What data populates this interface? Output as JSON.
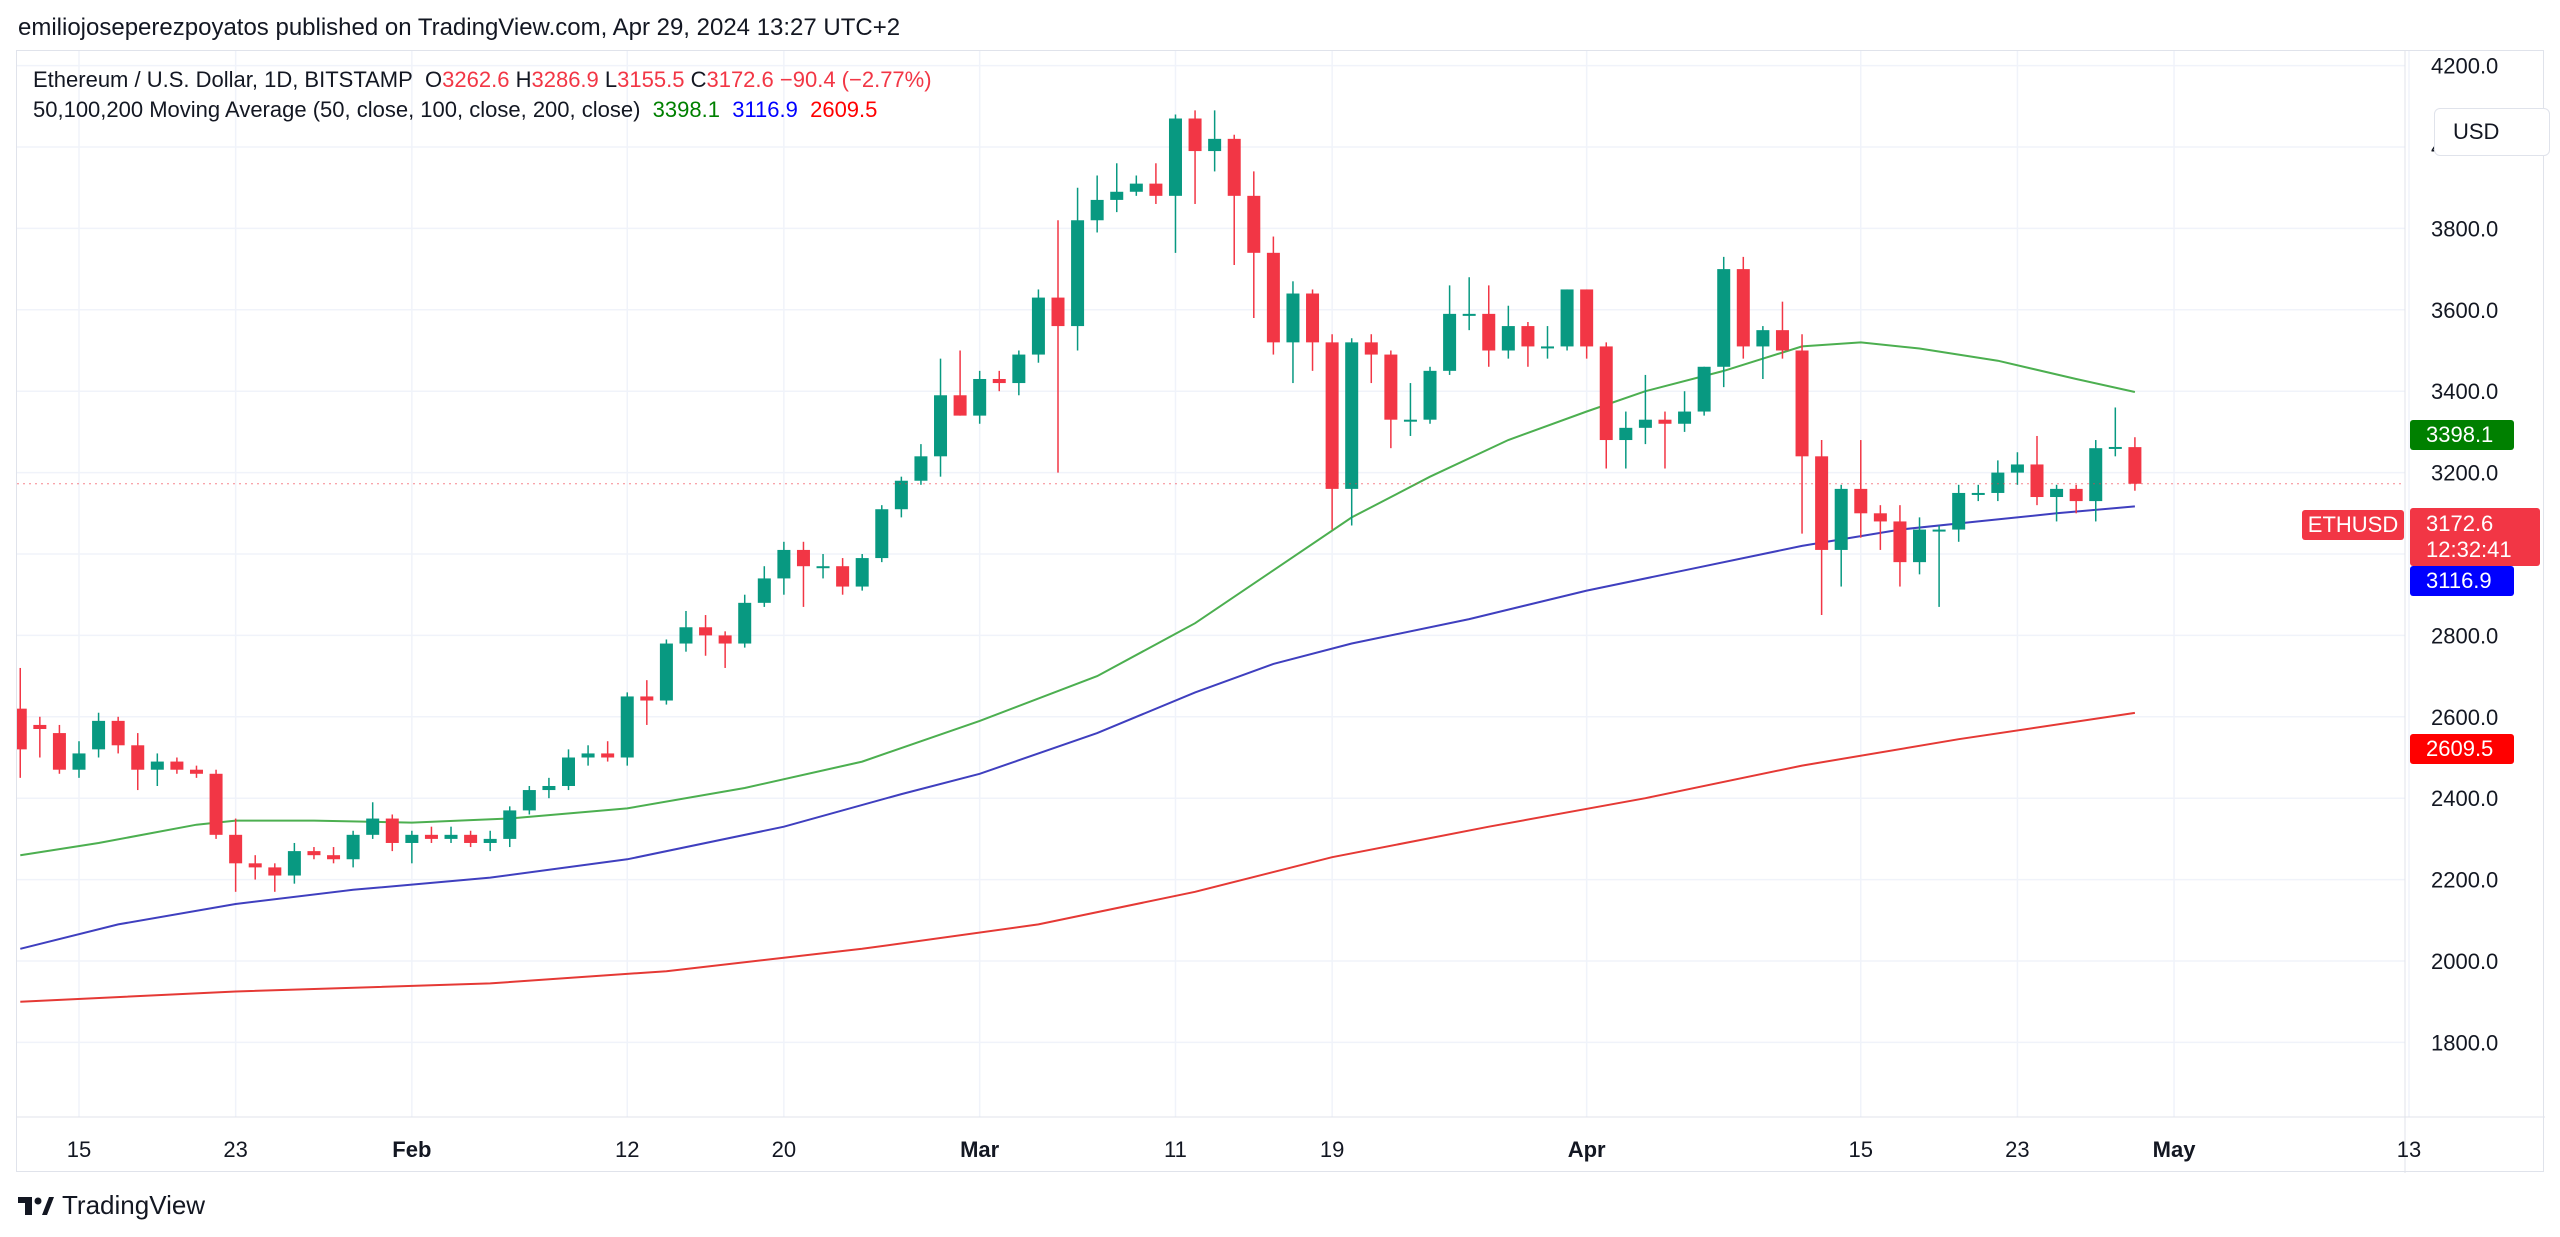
{
  "publisher": "emiliojoseperezpoyatos published on TradingView.com, Apr 29, 2024 13:27 UTC+2",
  "legend": {
    "symbol": "Ethereum / U.S. Dollar, 1D, BITSTAMP",
    "o_label": "O",
    "o_value": "3262.6",
    "h_label": "H",
    "h_value": "3286.9",
    "l_label": "L",
    "l_value": "3155.5",
    "c_label": "C",
    "c_value": "3172.6",
    "change": "−90.4 (−2.77%)",
    "ma_title": "50,100,200 Moving Average (50, close, 100, close, 200, close)",
    "ma50_value": "3398.1",
    "ma100_value": "3116.9",
    "ma200_value": "2609.5"
  },
  "currency_button": "USD",
  "brand": "TradingView",
  "colors": {
    "up": "#089981",
    "down": "#f23645",
    "ma50": "#4caf50",
    "ma100": "#3f3fbf",
    "ma200": "#e53935",
    "ma50_tag": "#008000",
    "ma100_tag": "#0000ff",
    "ma200_tag": "#ff0000"
  },
  "price_tags": {
    "symbol_label": "ETHUSD",
    "last_price": "3172.6",
    "countdown": "12:32:41",
    "ma50": "3398.1",
    "ma100": "3116.9",
    "ma200": "2609.5"
  },
  "chart_data": {
    "type": "candlestick",
    "x_axis": {
      "tick_labels": [
        "15",
        "23",
        "Feb",
        "12",
        "20",
        "Mar",
        "11",
        "19",
        "Apr",
        "15",
        "23",
        "May",
        "13"
      ],
      "tick_dates": [
        "2024-01-15",
        "2024-01-23",
        "2024-02-01",
        "2024-02-12",
        "2024-02-20",
        "2024-03-01",
        "2024-03-11",
        "2024-03-19",
        "2024-04-01",
        "2024-04-15",
        "2024-04-23",
        "2024-05-01",
        "2024-05-13"
      ]
    },
    "y_axis": {
      "ticks": [
        1800,
        2000,
        2200,
        2400,
        2600,
        2800,
        3000,
        3200,
        3400,
        3600,
        3800,
        4000,
        4200
      ],
      "ylim": [
        1680,
        4240
      ]
    },
    "grid": true,
    "candles": [
      [
        "2024-01-12",
        2620,
        2720,
        2450,
        2520
      ],
      [
        "2024-01-13",
        2580,
        2600,
        2500,
        2570
      ],
      [
        "2024-01-14",
        2560,
        2580,
        2460,
        2470
      ],
      [
        "2024-01-15",
        2470,
        2540,
        2450,
        2510
      ],
      [
        "2024-01-16",
        2520,
        2610,
        2500,
        2590
      ],
      [
        "2024-01-17",
        2590,
        2600,
        2510,
        2530
      ],
      [
        "2024-01-18",
        2530,
        2560,
        2420,
        2470
      ],
      [
        "2024-01-19",
        2470,
        2510,
        2430,
        2490
      ],
      [
        "2024-01-20",
        2490,
        2500,
        2460,
        2470
      ],
      [
        "2024-01-21",
        2470,
        2480,
        2450,
        2460
      ],
      [
        "2024-01-22",
        2460,
        2470,
        2300,
        2310
      ],
      [
        "2024-01-23",
        2310,
        2350,
        2170,
        2240
      ],
      [
        "2024-01-24",
        2240,
        2260,
        2200,
        2230
      ],
      [
        "2024-01-25",
        2230,
        2240,
        2170,
        2210
      ],
      [
        "2024-01-26",
        2210,
        2290,
        2190,
        2270
      ],
      [
        "2024-01-27",
        2270,
        2280,
        2250,
        2260
      ],
      [
        "2024-01-28",
        2260,
        2280,
        2240,
        2250
      ],
      [
        "2024-01-29",
        2250,
        2320,
        2230,
        2310
      ],
      [
        "2024-01-30",
        2310,
        2390,
        2300,
        2350
      ],
      [
        "2024-01-31",
        2350,
        2360,
        2270,
        2290
      ],
      [
        "2024-02-01",
        2290,
        2320,
        2240,
        2310
      ],
      [
        "2024-02-02",
        2310,
        2330,
        2290,
        2300
      ],
      [
        "2024-02-03",
        2300,
        2330,
        2290,
        2310
      ],
      [
        "2024-02-04",
        2310,
        2320,
        2280,
        2290
      ],
      [
        "2024-02-05",
        2290,
        2320,
        2270,
        2300
      ],
      [
        "2024-02-06",
        2300,
        2380,
        2280,
        2370
      ],
      [
        "2024-02-07",
        2370,
        2430,
        2360,
        2420
      ],
      [
        "2024-02-08",
        2420,
        2450,
        2400,
        2430
      ],
      [
        "2024-02-09",
        2430,
        2520,
        2420,
        2500
      ],
      [
        "2024-02-10",
        2500,
        2530,
        2480,
        2510
      ],
      [
        "2024-02-11",
        2510,
        2540,
        2490,
        2500
      ],
      [
        "2024-02-12",
        2500,
        2660,
        2480,
        2650
      ],
      [
        "2024-02-13",
        2650,
        2690,
        2580,
        2640
      ],
      [
        "2024-02-14",
        2640,
        2790,
        2630,
        2780
      ],
      [
        "2024-02-15",
        2780,
        2860,
        2760,
        2820
      ],
      [
        "2024-02-16",
        2820,
        2850,
        2750,
        2800
      ],
      [
        "2024-02-17",
        2800,
        2810,
        2720,
        2780
      ],
      [
        "2024-02-18",
        2780,
        2900,
        2770,
        2880
      ],
      [
        "2024-02-19",
        2880,
        2970,
        2870,
        2940
      ],
      [
        "2024-02-20",
        2940,
        3030,
        2900,
        3010
      ],
      [
        "2024-02-21",
        3010,
        3030,
        2870,
        2970
      ],
      [
        "2024-02-22",
        2970,
        3000,
        2940,
        2970
      ],
      [
        "2024-02-23",
        2970,
        2990,
        2900,
        2920
      ],
      [
        "2024-02-24",
        2920,
        3000,
        2910,
        2990
      ],
      [
        "2024-02-25",
        2990,
        3120,
        2980,
        3110
      ],
      [
        "2024-02-26",
        3110,
        3190,
        3090,
        3180
      ],
      [
        "2024-02-27",
        3180,
        3270,
        3170,
        3240
      ],
      [
        "2024-02-28",
        3240,
        3480,
        3190,
        3390
      ],
      [
        "2024-02-29",
        3390,
        3500,
        3340,
        3340
      ],
      [
        "2024-03-01",
        3340,
        3450,
        3320,
        3430
      ],
      [
        "2024-03-02",
        3430,
        3450,
        3400,
        3420
      ],
      [
        "2024-03-03",
        3420,
        3500,
        3390,
        3490
      ],
      [
        "2024-03-04",
        3490,
        3650,
        3470,
        3630
      ],
      [
        "2024-03-05",
        3630,
        3820,
        3200,
        3560
      ],
      [
        "2024-03-06",
        3560,
        3900,
        3500,
        3820
      ],
      [
        "2024-03-07",
        3820,
        3930,
        3790,
        3870
      ],
      [
        "2024-03-08",
        3870,
        3960,
        3840,
        3890
      ],
      [
        "2024-03-09",
        3890,
        3930,
        3880,
        3910
      ],
      [
        "2024-03-10",
        3910,
        3960,
        3860,
        3880
      ],
      [
        "2024-03-11",
        3880,
        4080,
        3740,
        4070
      ],
      [
        "2024-03-12",
        4070,
        4090,
        3860,
        3990
      ],
      [
        "2024-03-13",
        3990,
        4090,
        3940,
        4020
      ],
      [
        "2024-03-14",
        4020,
        4030,
        3710,
        3880
      ],
      [
        "2024-03-15",
        3880,
        3940,
        3580,
        3740
      ],
      [
        "2024-03-16",
        3740,
        3780,
        3490,
        3520
      ],
      [
        "2024-03-17",
        3520,
        3670,
        3420,
        3640
      ],
      [
        "2024-03-18",
        3640,
        3650,
        3450,
        3520
      ],
      [
        "2024-03-19",
        3520,
        3540,
        3060,
        3160
      ],
      [
        "2024-03-20",
        3160,
        3530,
        3070,
        3520
      ],
      [
        "2024-03-21",
        3520,
        3540,
        3420,
        3490
      ],
      [
        "2024-03-22",
        3490,
        3500,
        3260,
        3330
      ],
      [
        "2024-03-23",
        3330,
        3420,
        3290,
        3330
      ],
      [
        "2024-03-24",
        3330,
        3460,
        3320,
        3450
      ],
      [
        "2024-03-25",
        3450,
        3660,
        3440,
        3590
      ],
      [
        "2024-03-26",
        3590,
        3680,
        3550,
        3590
      ],
      [
        "2024-03-27",
        3590,
        3660,
        3460,
        3500
      ],
      [
        "2024-03-28",
        3500,
        3610,
        3480,
        3560
      ],
      [
        "2024-03-29",
        3560,
        3570,
        3460,
        3510
      ],
      [
        "2024-03-30",
        3510,
        3560,
        3480,
        3510
      ],
      [
        "2024-03-31",
        3510,
        3650,
        3500,
        3650
      ],
      [
        "2024-04-01",
        3650,
        3650,
        3480,
        3510
      ],
      [
        "2024-04-02",
        3510,
        3520,
        3210,
        3280
      ],
      [
        "2024-04-03",
        3280,
        3350,
        3210,
        3310
      ],
      [
        "2024-04-04",
        3310,
        3440,
        3270,
        3330
      ],
      [
        "2024-04-05",
        3330,
        3350,
        3210,
        3320
      ],
      [
        "2024-04-06",
        3320,
        3400,
        3300,
        3350
      ],
      [
        "2024-04-07",
        3350,
        3460,
        3340,
        3460
      ],
      [
        "2024-04-08",
        3460,
        3730,
        3410,
        3700
      ],
      [
        "2024-04-09",
        3700,
        3730,
        3480,
        3510
      ],
      [
        "2024-04-10",
        3510,
        3560,
        3430,
        3550
      ],
      [
        "2024-04-11",
        3550,
        3620,
        3480,
        3500
      ],
      [
        "2024-04-12",
        3500,
        3540,
        3050,
        3240
      ],
      [
        "2024-04-13",
        3240,
        3280,
        2850,
        3010
      ],
      [
        "2024-04-14",
        3010,
        3170,
        2920,
        3160
      ],
      [
        "2024-04-15",
        3160,
        3280,
        3040,
        3100
      ],
      [
        "2024-04-16",
        3100,
        3120,
        3010,
        3080
      ],
      [
        "2024-04-17",
        3080,
        3120,
        2920,
        2980
      ],
      [
        "2024-04-18",
        2980,
        3090,
        2950,
        3060
      ],
      [
        "2024-04-19",
        3060,
        3070,
        2870,
        3060
      ],
      [
        "2024-04-20",
        3060,
        3170,
        3030,
        3150
      ],
      [
        "2024-04-21",
        3150,
        3170,
        3130,
        3150
      ],
      [
        "2024-04-22",
        3150,
        3230,
        3130,
        3200
      ],
      [
        "2024-04-23",
        3200,
        3250,
        3170,
        3220
      ],
      [
        "2024-04-24",
        3220,
        3290,
        3120,
        3140
      ],
      [
        "2024-04-25",
        3140,
        3170,
        3080,
        3160
      ],
      [
        "2024-04-26",
        3160,
        3170,
        3100,
        3130
      ],
      [
        "2024-04-27",
        3130,
        3280,
        3080,
        3260
      ],
      [
        "2024-04-28",
        3260,
        3360,
        3240,
        3263
      ],
      [
        "2024-04-29",
        3262.6,
        3286.9,
        3155.5,
        3172.6
      ]
    ],
    "moving_averages": [
      {
        "name": "MA50",
        "points": [
          [
            "2024-01-12",
            2260
          ],
          [
            "2024-01-16",
            2290
          ],
          [
            "2024-01-21",
            2335
          ],
          [
            "2024-01-23",
            2345
          ],
          [
            "2024-01-27",
            2345
          ],
          [
            "2024-02-01",
            2340
          ],
          [
            "2024-02-06",
            2350
          ],
          [
            "2024-02-12",
            2375
          ],
          [
            "2024-02-18",
            2425
          ],
          [
            "2024-02-24",
            2490
          ],
          [
            "2024-03-01",
            2590
          ],
          [
            "2024-03-07",
            2700
          ],
          [
            "2024-03-12",
            2830
          ],
          [
            "2024-03-16",
            2960
          ],
          [
            "2024-03-20",
            3090
          ],
          [
            "2024-03-24",
            3190
          ],
          [
            "2024-03-28",
            3280
          ],
          [
            "2024-04-01",
            3350
          ],
          [
            "2024-04-04",
            3400
          ],
          [
            "2024-04-08",
            3450
          ],
          [
            "2024-04-12",
            3510
          ],
          [
            "2024-04-15",
            3520
          ],
          [
            "2024-04-18",
            3505
          ],
          [
            "2024-04-22",
            3475
          ],
          [
            "2024-04-26",
            3430
          ],
          [
            "2024-04-29",
            3398.1
          ]
        ]
      },
      {
        "name": "MA100",
        "points": [
          [
            "2024-01-12",
            2030
          ],
          [
            "2024-01-17",
            2090
          ],
          [
            "2024-01-23",
            2140
          ],
          [
            "2024-01-29",
            2175
          ],
          [
            "2024-02-05",
            2205
          ],
          [
            "2024-02-12",
            2250
          ],
          [
            "2024-02-20",
            2330
          ],
          [
            "2024-02-26",
            2410
          ],
          [
            "2024-03-01",
            2460
          ],
          [
            "2024-03-07",
            2560
          ],
          [
            "2024-03-12",
            2660
          ],
          [
            "2024-03-16",
            2730
          ],
          [
            "2024-03-20",
            2780
          ],
          [
            "2024-03-26",
            2840
          ],
          [
            "2024-04-01",
            2910
          ],
          [
            "2024-04-06",
            2960
          ],
          [
            "2024-04-12",
            3020
          ],
          [
            "2024-04-17",
            3060
          ],
          [
            "2024-04-21",
            3080
          ],
          [
            "2024-04-25",
            3100
          ],
          [
            "2024-04-29",
            3116.9
          ]
        ]
      },
      {
        "name": "MA200",
        "points": [
          [
            "2024-01-12",
            1900
          ],
          [
            "2024-01-23",
            1925
          ],
          [
            "2024-02-05",
            1945
          ],
          [
            "2024-02-14",
            1975
          ],
          [
            "2024-02-24",
            2030
          ],
          [
            "2024-03-04",
            2090
          ],
          [
            "2024-03-12",
            2170
          ],
          [
            "2024-03-19",
            2255
          ],
          [
            "2024-03-27",
            2330
          ],
          [
            "2024-04-04",
            2400
          ],
          [
            "2024-04-12",
            2480
          ],
          [
            "2024-04-20",
            2545
          ],
          [
            "2024-04-29",
            2609.5
          ]
        ]
      }
    ]
  }
}
